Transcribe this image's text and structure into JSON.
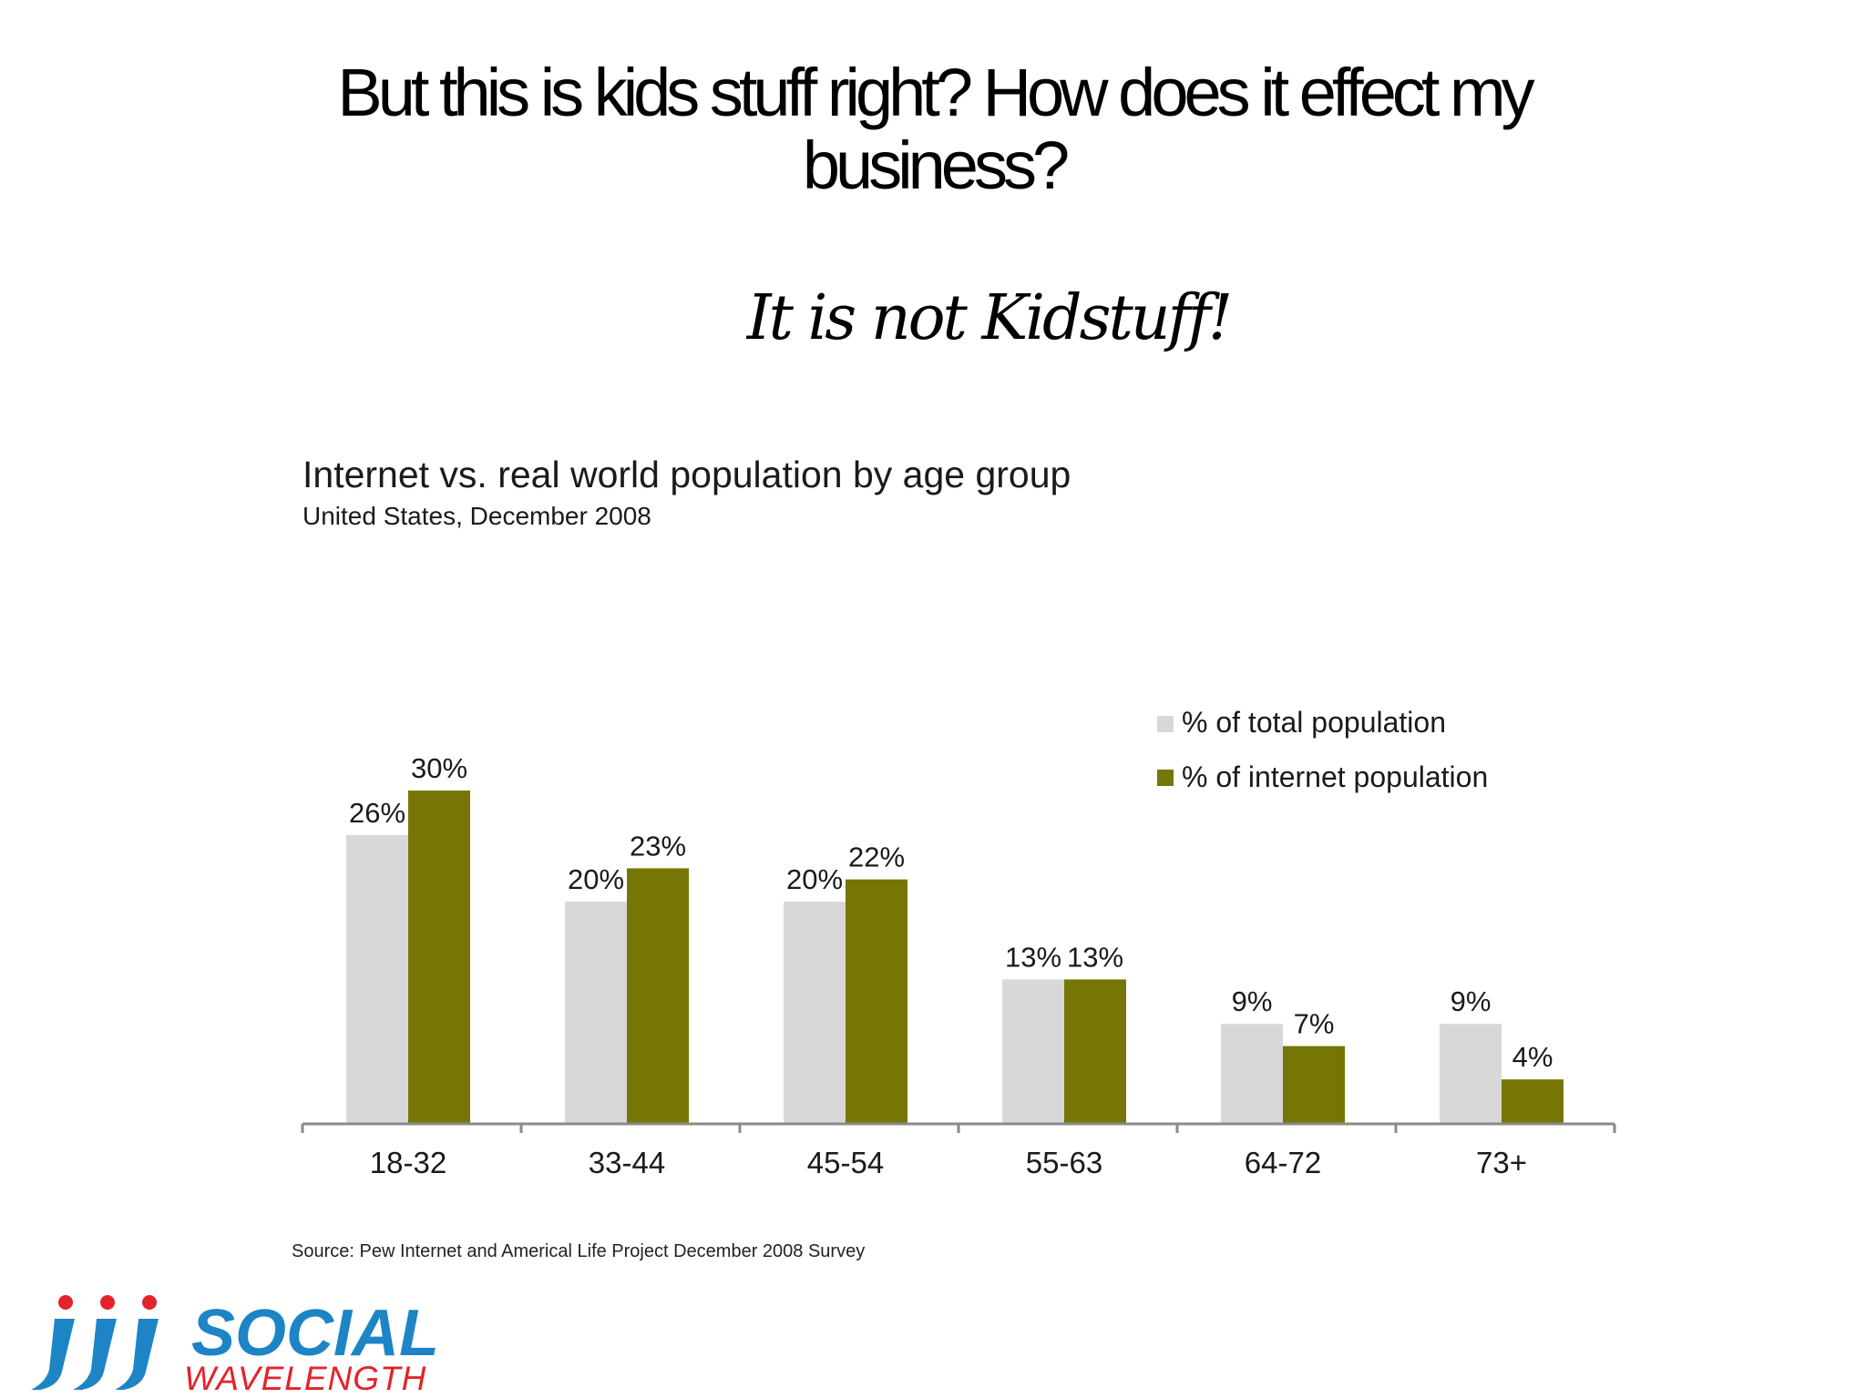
{
  "slide": {
    "title": "But this is kids stuff right? How does it effect my business?",
    "subtitle": "It is not Kidstuff!"
  },
  "chart_data": {
    "type": "bar",
    "title": "Internet vs. real world population by age group",
    "subtitle": "United States, December 2008",
    "categories": [
      "18-32",
      "33-44",
      "45-54",
      "55-63",
      "64-72",
      "73+"
    ],
    "series": [
      {
        "name": "% of total population",
        "values": [
          26,
          20,
          20,
          13,
          9,
          9
        ],
        "labels": [
          "26%",
          "20%",
          "20%",
          "13%",
          "9%",
          "9%"
        ],
        "color": "#d8d8d8"
      },
      {
        "name": "% of internet population",
        "values": [
          30,
          23,
          22,
          13,
          7,
          4
        ],
        "labels": [
          "30%",
          "23%",
          "22%",
          "13%",
          "7%",
          "4%"
        ],
        "color": "#767607"
      }
    ],
    "ylim": [
      0,
      30
    ],
    "grid": false,
    "legend_position": "right",
    "source": "Source: Pew Internet and Americal Life Project December 2008 Survey"
  },
  "logo": {
    "line1": "SOCIAL",
    "line2": "WAVELENGTH",
    "brand_blue": "#1d84c6",
    "brand_red": "#e3232b"
  }
}
